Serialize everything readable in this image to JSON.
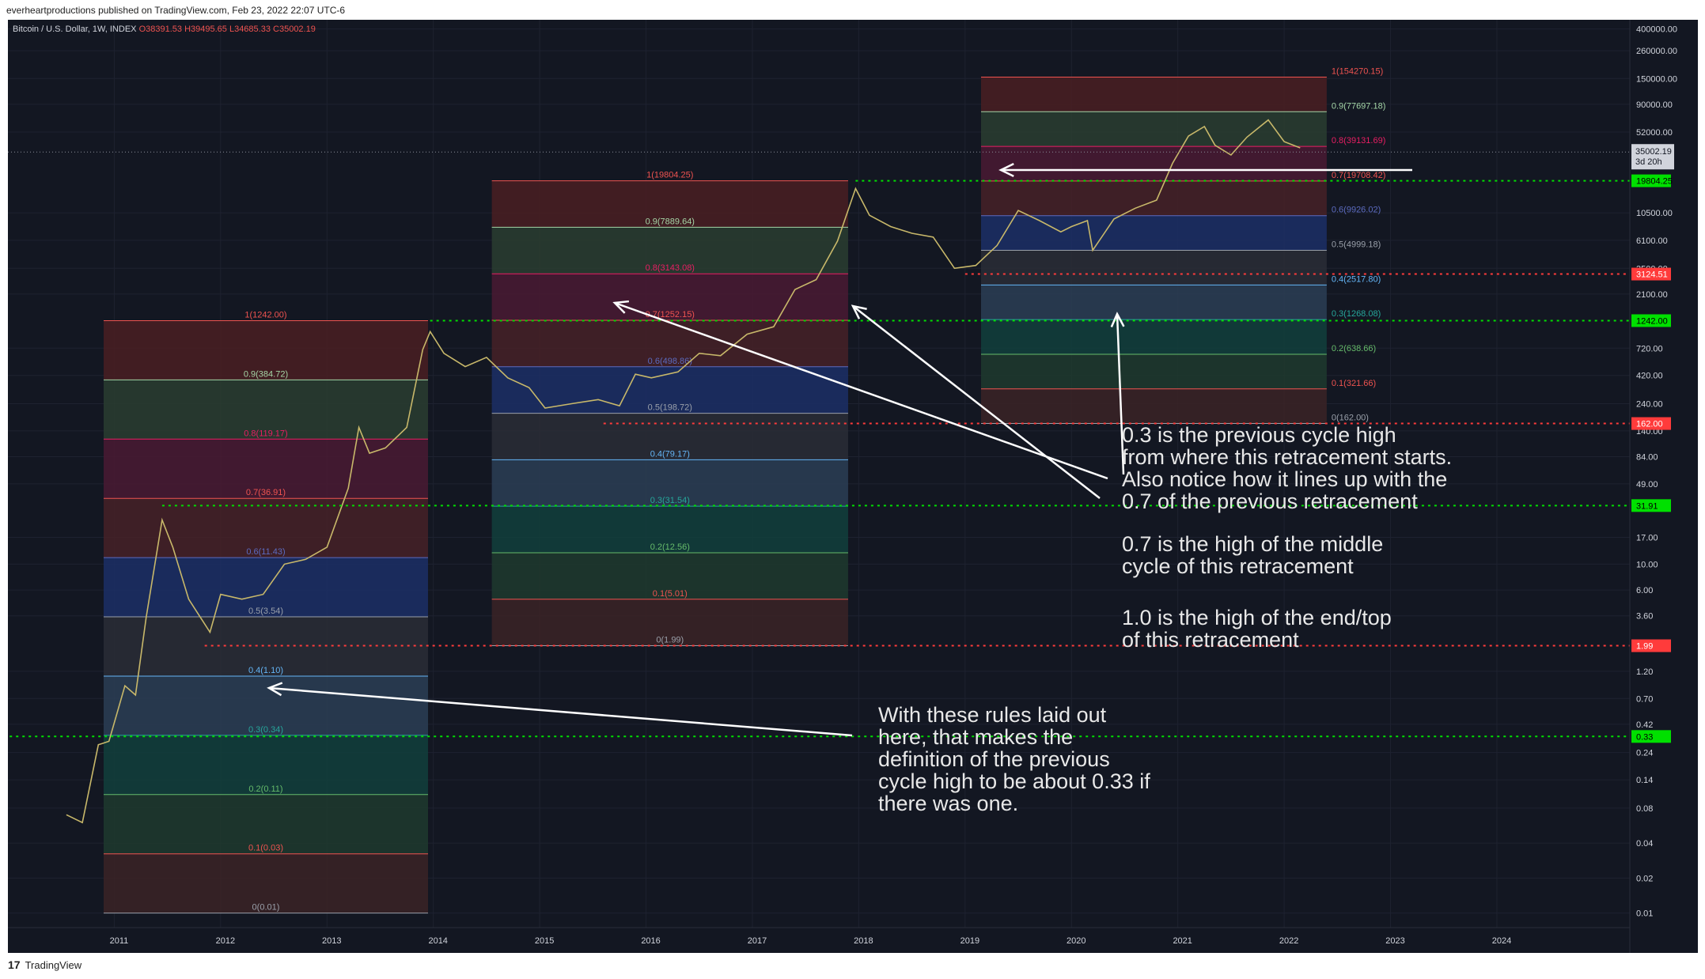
{
  "header": {
    "text": "everheartproductions published on TradingView.com, Feb 23, 2022 22:07 UTC-6"
  },
  "legend": {
    "symbol": "Bitcoin / U.S. Dollar, 1W, INDEX",
    "o": "O38391.53",
    "h": "H39495.65",
    "l": "L34685.33",
    "c": "C35002.19"
  },
  "footer": {
    "logo": "17",
    "brand": "TradingView"
  },
  "colors": {
    "bg": "#131722",
    "grid": "#1e2230",
    "green": "#00e000",
    "red": "#ff3b3b",
    "text": "#d1d4dc",
    "white": "#ffffff"
  },
  "chart_data": {
    "type": "line",
    "title": "",
    "yscale": "log",
    "ylim": [
      0.0075,
      480000
    ],
    "xlim": [
      2010.0,
      2025.25
    ],
    "xticks": [
      "2011",
      "2012",
      "2013",
      "2014",
      "2015",
      "2016",
      "2017",
      "2018",
      "2019",
      "2020",
      "2021",
      "2022",
      "2023",
      "2024"
    ],
    "yticks": [
      {
        "v": 400000,
        "t": "400000.00"
      },
      {
        "v": 260000,
        "t": "260000.00"
      },
      {
        "v": 150000,
        "t": "150000.00"
      },
      {
        "v": 90000,
        "t": "90000.00"
      },
      {
        "v": 52000,
        "t": "52000.00"
      },
      {
        "v": 10500,
        "t": "10500.00"
      },
      {
        "v": 6100,
        "t": "6100.00"
      },
      {
        "v": 3500,
        "t": "3500.00"
      },
      {
        "v": 2100,
        "t": "2100.00"
      },
      {
        "v": 720,
        "t": "720.00"
      },
      {
        "v": 420,
        "t": "420.00"
      },
      {
        "v": 240,
        "t": "240.00"
      },
      {
        "v": 140,
        "t": "140.00"
      },
      {
        "v": 84,
        "t": "84.00"
      },
      {
        "v": 49,
        "t": "49.00"
      },
      {
        "v": 17,
        "t": "17.00"
      },
      {
        "v": 10,
        "t": "10.00"
      },
      {
        "v": 6,
        "t": "6.00"
      },
      {
        "v": 3.6,
        "t": "3.60"
      },
      {
        "v": 1.2,
        "t": "1.20"
      },
      {
        "v": 0.7,
        "t": "0.70"
      },
      {
        "v": 0.42,
        "t": "0.42"
      },
      {
        "v": 0.24,
        "t": "0.24"
      },
      {
        "v": 0.14,
        "t": "0.14"
      },
      {
        "v": 0.08,
        "t": "0.08"
      },
      {
        "v": 0.04,
        "t": "0.04"
      },
      {
        "v": 0.02,
        "t": "0.02"
      },
      {
        "v": 0.01,
        "t": "0.01"
      }
    ],
    "series": [
      {
        "values": [
          [
            2010.55,
            0.07
          ],
          [
            2010.7,
            0.06
          ],
          [
            2010.85,
            0.28
          ],
          [
            2010.95,
            0.3
          ],
          [
            2011.1,
            0.9
          ],
          [
            2011.2,
            0.75
          ],
          [
            2011.3,
            3.5
          ],
          [
            2011.45,
            24
          ],
          [
            2011.55,
            14
          ],
          [
            2011.7,
            5
          ],
          [
            2011.9,
            2.6
          ],
          [
            2012.0,
            5.5
          ],
          [
            2012.2,
            5
          ],
          [
            2012.4,
            5.5
          ],
          [
            2012.6,
            10
          ],
          [
            2012.8,
            11
          ],
          [
            2013.0,
            14
          ],
          [
            2013.2,
            45
          ],
          [
            2013.3,
            150
          ],
          [
            2013.4,
            90
          ],
          [
            2013.55,
            100
          ],
          [
            2013.75,
            150
          ],
          [
            2013.9,
            700
          ],
          [
            2013.97,
            1000
          ],
          [
            2014.1,
            650
          ],
          [
            2014.3,
            500
          ],
          [
            2014.5,
            600
          ],
          [
            2014.7,
            400
          ],
          [
            2014.9,
            330
          ],
          [
            2015.05,
            220
          ],
          [
            2015.3,
            240
          ],
          [
            2015.55,
            260
          ],
          [
            2015.75,
            230
          ],
          [
            2015.9,
            430
          ],
          [
            2016.05,
            400
          ],
          [
            2016.3,
            450
          ],
          [
            2016.5,
            650
          ],
          [
            2016.7,
            620
          ],
          [
            2016.95,
            950
          ],
          [
            2017.2,
            1100
          ],
          [
            2017.4,
            2300
          ],
          [
            2017.6,
            2800
          ],
          [
            2017.8,
            6000
          ],
          [
            2017.97,
            17000
          ],
          [
            2018.1,
            10000
          ],
          [
            2018.3,
            8000
          ],
          [
            2018.5,
            7000
          ],
          [
            2018.7,
            6500
          ],
          [
            2018.9,
            3500
          ],
          [
            2019.1,
            3700
          ],
          [
            2019.3,
            5500
          ],
          [
            2019.5,
            11000
          ],
          [
            2019.7,
            9000
          ],
          [
            2019.9,
            7200
          ],
          [
            2020.0,
            8000
          ],
          [
            2020.15,
            9000
          ],
          [
            2020.2,
            5000
          ],
          [
            2020.4,
            9300
          ],
          [
            2020.6,
            11500
          ],
          [
            2020.8,
            13500
          ],
          [
            2020.95,
            28000
          ],
          [
            2021.1,
            48000
          ],
          [
            2021.25,
            58000
          ],
          [
            2021.35,
            40000
          ],
          [
            2021.5,
            33000
          ],
          [
            2021.65,
            47000
          ],
          [
            2021.85,
            66000
          ],
          [
            2022.0,
            43000
          ],
          [
            2022.15,
            38000
          ]
        ]
      }
    ],
    "fib_retracements": [
      {
        "x0": 2010.9,
        "x1": 2013.95,
        "low": 0.01,
        "high": 1242,
        "levels": [
          {
            "f": 0,
            "label": "0(0.01)"
          },
          {
            "f": 0.1,
            "label": "0.1(0.03)"
          },
          {
            "f": 0.2,
            "label": "0.2(0.11)"
          },
          {
            "f": 0.3,
            "label": "0.3(0.34)"
          },
          {
            "f": 0.4,
            "label": "0.4(1.10)"
          },
          {
            "f": 0.5,
            "label": "0.5(3.54)"
          },
          {
            "f": 0.6,
            "label": "0.6(11.43)"
          },
          {
            "f": 0.7,
            "label": "0.7(36.91)"
          },
          {
            "f": 0.8,
            "label": "0.8(119.17)"
          },
          {
            "f": 0.9,
            "label": "0.9(384.72)"
          },
          {
            "f": 1,
            "label": "1(1242.00)"
          }
        ]
      },
      {
        "x0": 2014.55,
        "x1": 2017.9,
        "low": 1.99,
        "high": 19804.25,
        "levels": [
          {
            "f": 0,
            "label": "0(1.99)"
          },
          {
            "f": 0.1,
            "label": "0.1(5.01)"
          },
          {
            "f": 0.2,
            "label": "0.2(12.56)"
          },
          {
            "f": 0.3,
            "label": "0.3(31.54)"
          },
          {
            "f": 0.4,
            "label": "0.4(79.17)"
          },
          {
            "f": 0.5,
            "label": "0.5(198.72)"
          },
          {
            "f": 0.6,
            "label": "0.6(498.86)"
          },
          {
            "f": 0.7,
            "label": "0.7(1252.15)"
          },
          {
            "f": 0.8,
            "label": "0.8(3143.08)"
          },
          {
            "f": 0.9,
            "label": "0.9(7889.64)"
          },
          {
            "f": 1,
            "label": "1(19804.25)"
          }
        ]
      },
      {
        "x0": 2019.15,
        "x1": 2022.4,
        "low": 162,
        "high": 154270.15,
        "levels": [
          {
            "f": 0,
            "label": "0(162.00)"
          },
          {
            "f": 0.1,
            "label": "0.1(321.66)"
          },
          {
            "f": 0.2,
            "label": "0.2(638.66)"
          },
          {
            "f": 0.3,
            "label": "0.3(1268.08)"
          },
          {
            "f": 0.4,
            "label": "0.4(2517.80)"
          },
          {
            "f": 0.5,
            "label": "0.5(4999.18)"
          },
          {
            "f": 0.6,
            "label": "0.6(9926.02)"
          },
          {
            "f": 0.7,
            "label": "0.7(19708.42)"
          },
          {
            "f": 0.8,
            "label": "0.8(39131.69)"
          },
          {
            "f": 0.9,
            "label": "0.9(77697.18)"
          },
          {
            "f": 1,
            "label": "1(154270.15)"
          }
        ]
      }
    ],
    "horizontal_lines": [
      {
        "v": 19804.25,
        "label": "19804.25",
        "color": "green",
        "x_from": 2017.97
      },
      {
        "v": 3124.51,
        "label": "3124.51",
        "color": "red",
        "x_from": 2019.0
      },
      {
        "v": 1242.0,
        "label": "1242.00",
        "color": "green",
        "x_from": 2013.97
      },
      {
        "v": 162.0,
        "label": "162.00",
        "color": "red",
        "x_from": 2015.6
      },
      {
        "v": 31.91,
        "label": "31.91",
        "color": "green",
        "x_from": 2011.45
      },
      {
        "v": 1.99,
        "label": "1.99",
        "color": "red",
        "x_from": 2011.85
      },
      {
        "v": 0.33,
        "label": "0.33",
        "color": "green",
        "x_from": 2009.6
      }
    ],
    "last_price": {
      "value": 35002.19,
      "label": "35002.19",
      "countdown": "3d 20h"
    },
    "annotations": [
      "0.3 is the previous cycle high\nfrom where this retracement starts.\nAlso notice how it lines up with the\n0.7 of the previous retracement",
      "0.7 is the high of the middle\ncycle of this retracement",
      "1.0 is the high of the end/top\nof this retracement",
      "With these rules laid out\nhere, that makes the\ndefinition of the previous\ncycle high to be about 0.33 if\nthere was one."
    ]
  }
}
